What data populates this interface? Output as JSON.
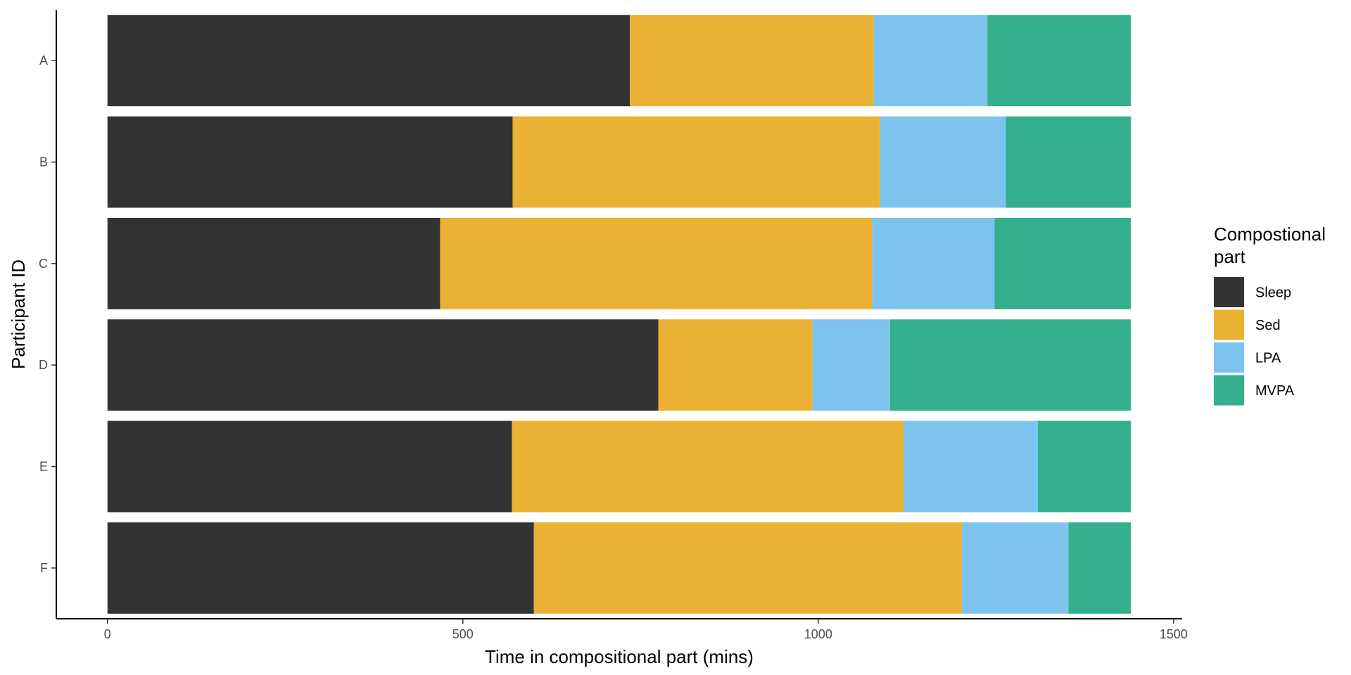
{
  "chart_data": {
    "type": "bar",
    "orientation": "horizontal",
    "stacked": true,
    "title": "",
    "xlabel": "Time in compositional part (mins)",
    "ylabel": "Participant ID",
    "xlim": [
      -72,
      1512
    ],
    "xticks": [
      0,
      500,
      1000,
      1500
    ],
    "categories": [
      "A",
      "B",
      "C",
      "D",
      "E",
      "F"
    ],
    "series": [
      {
        "name": "Sleep",
        "color": "#333333",
        "values": [
          735,
          570,
          468,
          775,
          569,
          600
        ]
      },
      {
        "name": "Sed",
        "color": "#EBB134",
        "values": [
          343,
          517,
          608,
          217,
          551,
          602
        ]
      },
      {
        "name": "LPA",
        "color": "#7CC4ED",
        "values": [
          160,
          177,
          172,
          109,
          189,
          150
        ]
      },
      {
        "name": "MVPA",
        "color": "#33AF8D",
        "values": [
          202,
          176,
          192,
          339,
          131,
          88
        ]
      }
    ],
    "legend": {
      "title_lines": [
        "Compostional",
        "part"
      ],
      "position": "right"
    },
    "grid": false
  }
}
